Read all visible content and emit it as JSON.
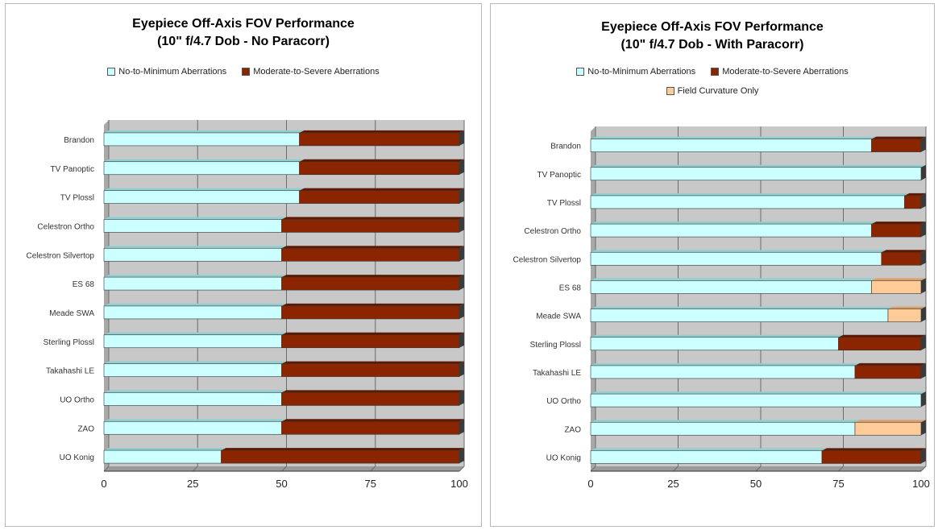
{
  "colors": {
    "no_to_minimum": "#ccffff",
    "moderate_to_severe": "#8b2500",
    "field_curvature": "#ffcc99",
    "plot_bg": "#c8c8c8",
    "grid": "#6b6b6b"
  },
  "chart_data": [
    {
      "type": "bar",
      "orientation": "horizontal",
      "stacked": true,
      "title_line1": "Eyepiece Off-Axis FOV Performance",
      "title_line2": "(10\" f/4.7 Dob - No Paracorr)",
      "legend": [
        "No-to-Minimum Aberrations",
        "Moderate-to-Severe Aberrations"
      ],
      "legend_placement": "top",
      "categories": [
        "Brandon",
        "TV Panoptic",
        "TV Plossl",
        "Celestron Ortho",
        "Celestron Silvertop",
        "ES 68",
        "Meade SWA",
        "Sterling Plossl",
        "Takahashi LE",
        "UO Ortho",
        "ZAO",
        "UO Konig"
      ],
      "series": [
        {
          "name": "No-to-Minimum Aberrations",
          "color_key": "no_to_minimum",
          "values": [
            55,
            55,
            55,
            50,
            50,
            50,
            50,
            50,
            50,
            50,
            50,
            33
          ]
        },
        {
          "name": "Moderate-to-Severe Aberrations",
          "color_key": "moderate_to_severe",
          "values": [
            45,
            45,
            45,
            50,
            50,
            50,
            50,
            50,
            50,
            50,
            50,
            67
          ]
        }
      ],
      "x_ticks": [
        "0",
        "25",
        "50",
        "75",
        "100"
      ],
      "xlim": [
        0,
        100
      ],
      "grid": true
    },
    {
      "type": "bar",
      "orientation": "horizontal",
      "stacked": true,
      "title_line1": "Eyepiece Off-Axis FOV Performance",
      "title_line2": "(10\" f/4.7 Dob - With Paracorr)",
      "legend": [
        "No-to-Minimum Aberrations",
        "Moderate-to-Severe Aberrations",
        "Field Curvature Only"
      ],
      "legend_placement": "top",
      "categories": [
        "Brandon",
        "TV Panoptic",
        "TV Plossl",
        "Celestron Ortho",
        "Celestron Silvertop",
        "ES 68",
        "Meade SWA",
        "Sterling Plossl",
        "Takahashi LE",
        "UO Ortho",
        "ZAO",
        "UO Konig"
      ],
      "series": [
        {
          "name": "No-to-Minimum Aberrations",
          "color_key": "no_to_minimum",
          "values": [
            85,
            100,
            95,
            85,
            88,
            85,
            90,
            75,
            80,
            100,
            80,
            70
          ]
        },
        {
          "name": "Moderate-to-Severe Aberrations",
          "color_key": "moderate_to_severe",
          "values": [
            15,
            0,
            5,
            15,
            12,
            0,
            0,
            25,
            20,
            0,
            0,
            30
          ]
        },
        {
          "name": "Field Curvature Only",
          "color_key": "field_curvature",
          "values": [
            0,
            0,
            0,
            0,
            0,
            15,
            10,
            0,
            0,
            0,
            20,
            0
          ]
        }
      ],
      "x_ticks": [
        "0",
        "25",
        "50",
        "75",
        "100"
      ],
      "xlim": [
        0,
        100
      ],
      "grid": true
    }
  ]
}
